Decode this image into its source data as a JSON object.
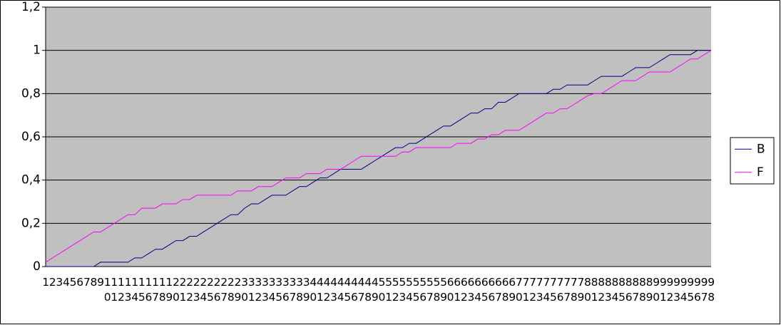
{
  "chart_data": {
    "type": "line",
    "categories": [
      "1",
      "2",
      "3",
      "4",
      "5",
      "6",
      "7",
      "8",
      "9",
      "10",
      "11",
      "12",
      "13",
      "14",
      "15",
      "16",
      "17",
      "18",
      "19",
      "20",
      "21",
      "22",
      "23",
      "24",
      "25",
      "26",
      "27",
      "28",
      "29",
      "30",
      "31",
      "32",
      "33",
      "34",
      "35",
      "36",
      "37",
      "38",
      "39",
      "40",
      "41",
      "42",
      "43",
      "44",
      "45",
      "46",
      "47",
      "48",
      "49",
      "50",
      "51",
      "52",
      "53",
      "54",
      "55",
      "56",
      "57",
      "58",
      "59",
      "60",
      "61",
      "62",
      "63",
      "64",
      "65",
      "66",
      "67",
      "68",
      "69",
      "70",
      "71",
      "72",
      "73",
      "74",
      "75",
      "76",
      "77",
      "78",
      "79",
      "80",
      "81",
      "82",
      "83",
      "84",
      "85",
      "86",
      "87",
      "88",
      "89",
      "90",
      "91",
      "92",
      "93",
      "94",
      "95",
      "96",
      "97",
      "98"
    ],
    "series": [
      {
        "name": "B",
        "color": "#000080",
        "values": [
          0,
          0,
          0,
          0,
          0,
          0,
          0,
          0,
          0.02,
          0.02,
          0.02,
          0.02,
          0.02,
          0.04,
          0.04,
          0.06,
          0.08,
          0.08,
          0.1,
          0.12,
          0.12,
          0.14,
          0.14,
          0.16,
          0.18,
          0.2,
          0.22,
          0.24,
          0.24,
          0.27,
          0.29,
          0.29,
          0.31,
          0.33,
          0.33,
          0.33,
          0.35,
          0.37,
          0.37,
          0.39,
          0.41,
          0.41,
          0.43,
          0.45,
          0.45,
          0.45,
          0.45,
          0.47,
          0.49,
          0.51,
          0.53,
          0.55,
          0.55,
          0.57,
          0.57,
          0.59,
          0.61,
          0.63,
          0.65,
          0.65,
          0.67,
          0.69,
          0.71,
          0.71,
          0.73,
          0.73,
          0.76,
          0.76,
          0.78,
          0.8,
          0.8,
          0.8,
          0.8,
          0.8,
          0.82,
          0.82,
          0.84,
          0.84,
          0.84,
          0.84,
          0.86,
          0.88,
          0.88,
          0.88,
          0.88,
          0.9,
          0.92,
          0.92,
          0.92,
          0.94,
          0.96,
          0.98,
          0.98,
          0.98,
          0.98,
          1,
          1,
          1
        ]
      },
      {
        "name": "F",
        "color": "#ff00ff",
        "values": [
          0.02,
          0.04,
          0.06,
          0.08,
          0.1,
          0.12,
          0.14,
          0.16,
          0.16,
          0.18,
          0.2,
          0.22,
          0.24,
          0.24,
          0.27,
          0.27,
          0.27,
          0.29,
          0.29,
          0.29,
          0.31,
          0.31,
          0.33,
          0.33,
          0.33,
          0.33,
          0.33,
          0.33,
          0.35,
          0.35,
          0.35,
          0.37,
          0.37,
          0.37,
          0.39,
          0.41,
          0.41,
          0.41,
          0.43,
          0.43,
          0.43,
          0.45,
          0.45,
          0.45,
          0.47,
          0.49,
          0.51,
          0.51,
          0.51,
          0.51,
          0.51,
          0.51,
          0.53,
          0.53,
          0.55,
          0.55,
          0.55,
          0.55,
          0.55,
          0.55,
          0.57,
          0.57,
          0.57,
          0.59,
          0.59,
          0.61,
          0.61,
          0.63,
          0.63,
          0.63,
          0.65,
          0.67,
          0.69,
          0.71,
          0.71,
          0.73,
          0.73,
          0.75,
          0.77,
          0.79,
          0.8,
          0.8,
          0.82,
          0.84,
          0.86,
          0.86,
          0.86,
          0.88,
          0.9,
          0.9,
          0.9,
          0.9,
          0.92,
          0.94,
          0.96,
          0.96,
          0.98,
          1
        ]
      }
    ],
    "ylim": [
      0,
      1.2
    ],
    "yticks": [
      0,
      {
        "value": 0.2,
        "label": "0,2"
      },
      {
        "value": 0.4,
        "label": "0,4"
      },
      {
        "value": 0.6,
        "label": "0,6"
      },
      {
        "value": 0.8,
        "label": "0,8"
      },
      1,
      {
        "value": 1.2,
        "label": "1,2"
      }
    ],
    "grid": true,
    "plot_background": "#c0c0c0",
    "legend": "right"
  }
}
